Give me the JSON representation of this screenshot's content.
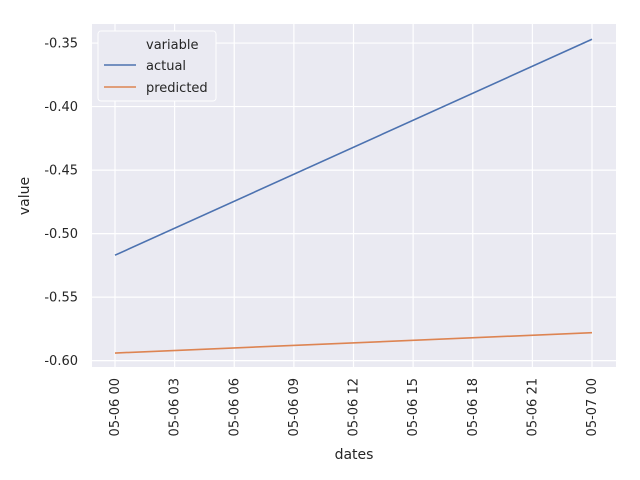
{
  "chart_data": {
    "type": "line",
    "xlabel": "dates",
    "ylabel": "value",
    "x": [
      "05-06 00",
      "05-07 00"
    ],
    "x_ticks": [
      "05-06 00",
      "05-06 03",
      "05-06 06",
      "05-06 09",
      "05-06 12",
      "05-06 15",
      "05-06 18",
      "05-06 21",
      "05-07 00"
    ],
    "y_ticks": [
      "-0.35",
      "-0.40",
      "-0.45",
      "-0.50",
      "-0.55",
      "-0.60"
    ],
    "ylim": [
      -0.605,
      -0.335
    ],
    "grid": true,
    "legend": {
      "title": "variable",
      "placement": "top-left"
    },
    "series": [
      {
        "name": "actual",
        "color": "#4c72b0",
        "x": [
          "05-06 00",
          "05-07 00"
        ],
        "values": [
          -0.517,
          -0.347
        ]
      },
      {
        "name": "predicted",
        "color": "#dd8452",
        "x": [
          "05-06 00",
          "05-07 00"
        ],
        "values": [
          -0.594,
          -0.578
        ]
      }
    ]
  }
}
